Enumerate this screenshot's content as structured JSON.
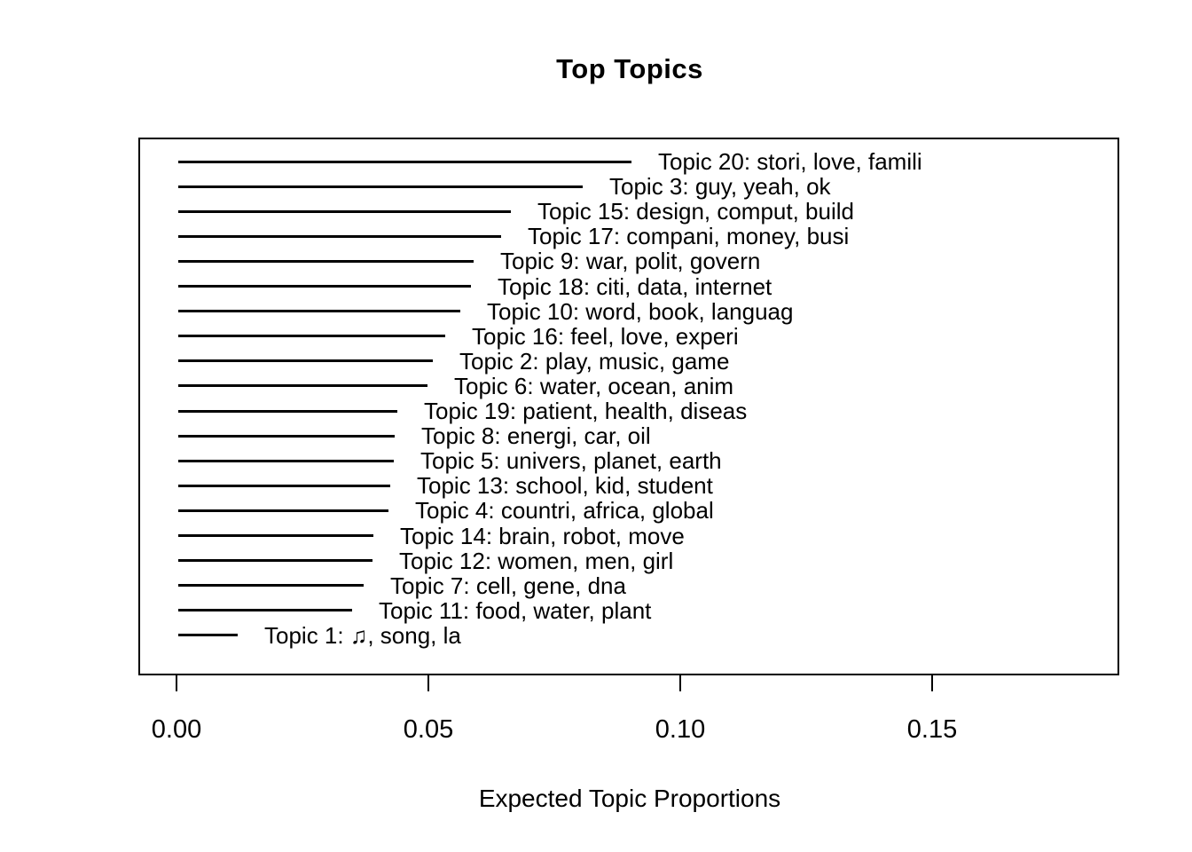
{
  "chart_data": {
    "type": "bar",
    "variant": "stm-summary-segments",
    "title": "Top Topics",
    "xlabel": "Expected Topic Proportions",
    "ylabel": "",
    "xlim": [
      0,
      0.187
    ],
    "grid": false,
    "legend": "none",
    "line_color": "#000000",
    "background_color": "#ffffff",
    "x_ticks": [
      {
        "value": 0.0,
        "label": "0.00"
      },
      {
        "value": 0.05,
        "label": "0.05"
      },
      {
        "value": 0.1,
        "label": "0.10"
      },
      {
        "value": 0.15,
        "label": "0.15"
      }
    ],
    "topics": [
      {
        "label": "Topic 20: stori, love, famili",
        "value": 0.09
      },
      {
        "label": "Topic 3: guy, yeah, ok",
        "value": 0.0802
      },
      {
        "label": "Topic 15: design, comput, build",
        "value": 0.066
      },
      {
        "label": "Topic 17: compani, money, busi",
        "value": 0.0641
      },
      {
        "label": "Topic 9: war, polit, govern",
        "value": 0.0586
      },
      {
        "label": "Topic 18: citi, data, internet",
        "value": 0.0581
      },
      {
        "label": "Topic 10: word, book, languag",
        "value": 0.056
      },
      {
        "label": "Topic 16: feel, love, experi",
        "value": 0.053
      },
      {
        "label": "Topic 2: play, music, game",
        "value": 0.0505
      },
      {
        "label": "Topic 6: water, ocean, anim",
        "value": 0.0495
      },
      {
        "label": "Topic 19: patient, health, diseas",
        "value": 0.0435
      },
      {
        "label": "Topic 8: energi, car, oil",
        "value": 0.043
      },
      {
        "label": "Topic 5: univers, planet, earth",
        "value": 0.0428
      },
      {
        "label": "Topic 13: school, kid, student",
        "value": 0.042
      },
      {
        "label": "Topic 4: countri, africa, global",
        "value": 0.0418
      },
      {
        "label": "Topic 14: brain, robot, move",
        "value": 0.0388
      },
      {
        "label": "Topic 12: women, men, girl",
        "value": 0.0386
      },
      {
        "label": "Topic 7: cell, gene, dna",
        "value": 0.0368
      },
      {
        "label": "Topic 11: food, water, plant",
        "value": 0.0345
      },
      {
        "label": "Topic 1: ♫, song, la",
        "value": 0.0118
      }
    ]
  }
}
